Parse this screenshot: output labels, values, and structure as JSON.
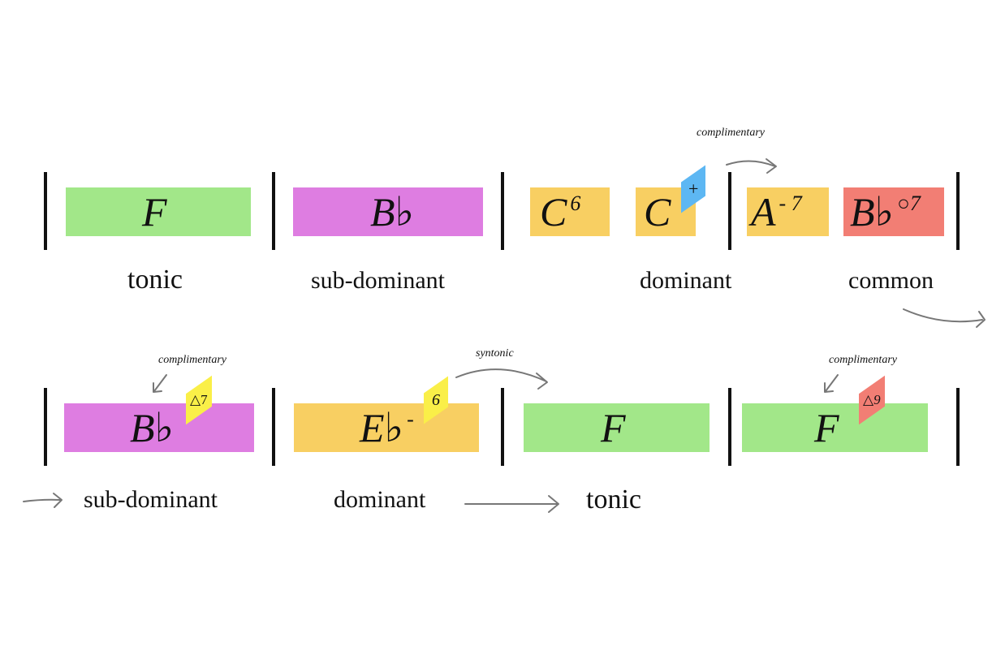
{
  "colors": {
    "tonic": "#a2e789",
    "subdominant": "#de7de1",
    "dominant": "#f8cf62",
    "diminished": "#f27e74",
    "blue_tag": "#5db7f3",
    "yellow_tag": "#faef48",
    "red_tag": "#f27e74"
  },
  "row1": {
    "chords": {
      "f": {
        "root": "F",
        "ext": ""
      },
      "bb": {
        "root": "B♭",
        "ext": ""
      },
      "c6": {
        "root": "C",
        "ext": "6"
      },
      "c": {
        "root": "C",
        "ext": ""
      },
      "am7": {
        "root": "A",
        "ext": "- 7"
      },
      "bbdim7": {
        "root": "B♭",
        "ext": "○7"
      }
    },
    "tags": {
      "c_plus": "+"
    },
    "functions": {
      "tonic": "tonic",
      "subdominant": "sub-dominant",
      "dominant": "dominant",
      "common": "common"
    },
    "notes": {
      "complimentary": "complimentary"
    }
  },
  "row2": {
    "chords": {
      "bb": {
        "root": "B♭",
        "ext": ""
      },
      "eb": {
        "root": "E♭",
        "ext": "-"
      },
      "f1": {
        "root": "F",
        "ext": ""
      },
      "f2": {
        "root": "F",
        "ext": ""
      }
    },
    "tags": {
      "maj7": "△7",
      "six": "6",
      "maj9": "△9"
    },
    "functions": {
      "subdominant": "sub-dominant",
      "dominant": "dominant",
      "tonic": "tonic"
    },
    "notes": {
      "complimentary_1": "complimentary",
      "syntonic": "syntonic",
      "complimentary_2": "complimentary"
    }
  }
}
